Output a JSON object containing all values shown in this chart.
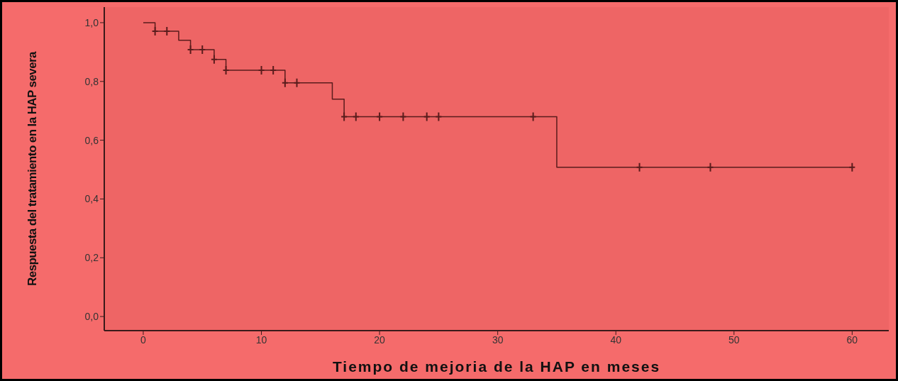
{
  "chart_data": {
    "type": "step",
    "xlabel": "Tiempo de mejoria de la HAP en meses",
    "ylabel": "Respuesta del tratamiento en la HAP severa",
    "xlim": [
      -3.3,
      63.1
    ],
    "xticks": [
      0,
      10,
      20,
      30,
      40,
      50,
      60
    ],
    "ylim": [
      -0.048,
      1.053
    ],
    "yticks": [
      {
        "value": 0,
        "label": "0,0"
      },
      {
        "value": 0.2,
        "label": "0,2"
      },
      {
        "value": 0.4,
        "label": "0,4"
      },
      {
        "value": 0.6,
        "label": "0,6"
      },
      {
        "value": 0.8,
        "label": "0,8"
      },
      {
        "value": 1,
        "label": "1,0"
      }
    ],
    "grid": false,
    "series": [
      {
        "color": "#5a1c1c",
        "line_style": "solid",
        "x": [
          0,
          1,
          3,
          4,
          6,
          7,
          12,
          16,
          17,
          35,
          60
        ],
        "values": [
          1,
          0.971,
          0.94,
          0.908,
          0.875,
          0.838,
          0.795,
          0.74,
          0.68,
          0.508,
          0.508
        ]
      },
      {
        "type": "scatter",
        "color": "#5a1c1c",
        "marker": "cross",
        "x": [
          1,
          2,
          4,
          5,
          6,
          7,
          10,
          11,
          12,
          13,
          17,
          18,
          20,
          22,
          24,
          25,
          33,
          42,
          48,
          60
        ],
        "values": [
          0.971,
          0.971,
          0.908,
          0.908,
          0.875,
          0.838,
          0.838,
          0.838,
          0.795,
          0.795,
          0.68,
          0.68,
          0.68,
          0.68,
          0.68,
          0.68,
          0.68,
          0.508,
          0.508,
          0.508
        ]
      }
    ]
  }
}
